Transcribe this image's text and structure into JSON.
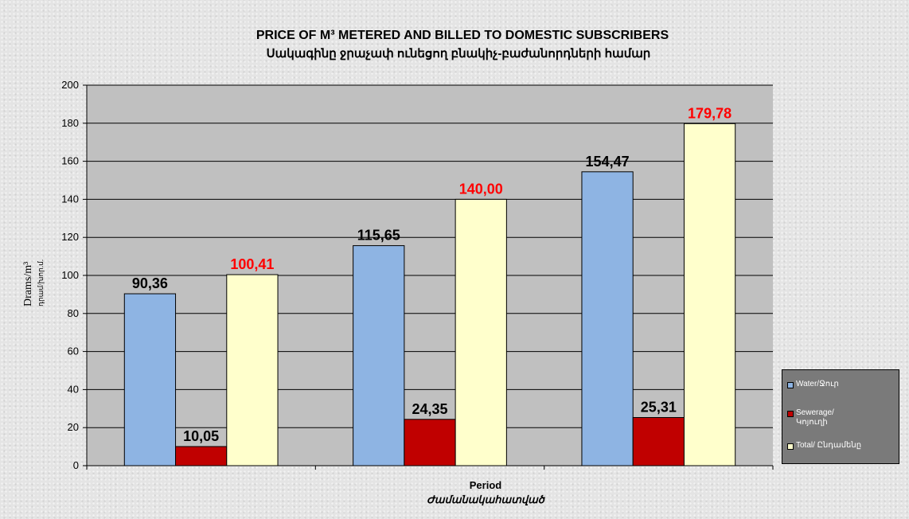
{
  "chart_data": {
    "type": "bar",
    "title": "PRICE OF M³ METERED  AND BILLED TO DOMESTIC SUBSCRIBERS",
    "subtitle": "Սակագինը ջրաչափ ունեցող բնակիչ-բաժանորդների համար",
    "xlabel": "Period",
    "xlabel_sub": "Ժամանակահատված",
    "ylabel": "Drams/m³",
    "ylabel_sub": "դրամ/խոր.մ.",
    "ylim": [
      0,
      200
    ],
    "yticks": [
      "0",
      "20",
      "40",
      "60",
      "80",
      "100",
      "120",
      "140",
      "160",
      "180",
      "200"
    ],
    "grid": true,
    "legend_position": "bottom-right",
    "categories": [
      "",
      "",
      ""
    ],
    "series": [
      {
        "name": "Water/Ջուր",
        "values": [
          90.36,
          115.65,
          154.47
        ],
        "labels": [
          "90,36",
          "115,65",
          "154,47"
        ],
        "color": "#8eb4e3",
        "label_color": "#000000"
      },
      {
        "name": "Sewerage/ Կոյուղի",
        "values": [
          10.05,
          24.35,
          25.31
        ],
        "labels": [
          "10,05",
          "24,35",
          "25,31"
        ],
        "color": "#c00000",
        "label_color": "#000000"
      },
      {
        "name": "Total/ Ընդամենը",
        "values": [
          100.41,
          140.0,
          179.78
        ],
        "labels": [
          "100,41",
          "140,00",
          "179,78"
        ],
        "color": "#ffffcc",
        "label_color": "#ff0000"
      }
    ],
    "plot_background": "#c0c0c0"
  }
}
